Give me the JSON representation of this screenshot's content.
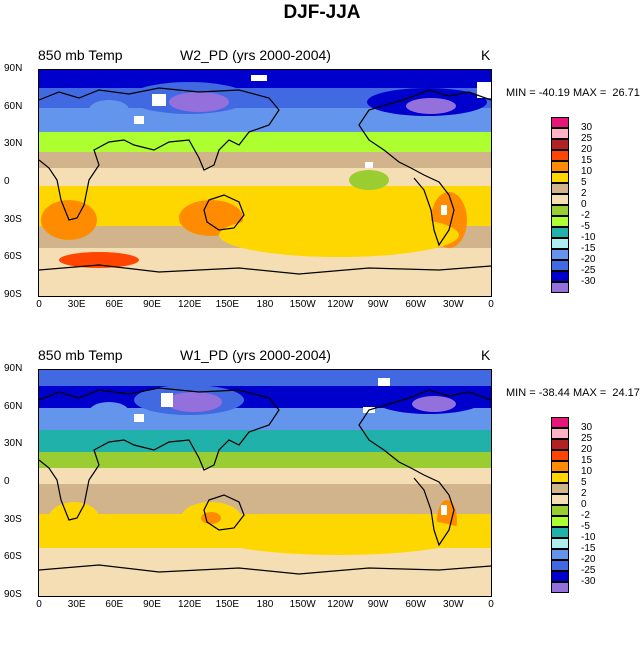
{
  "title": "DJF-JJA",
  "color_scale": {
    "labels": [
      "30",
      "25",
      "20",
      "15",
      "10",
      "5",
      "2",
      "0",
      "-2",
      "-5",
      "-10",
      "-15",
      "-20",
      "-25",
      "-30"
    ],
    "colors": [
      "#e8157a",
      "#ffb3c6",
      "#b22222",
      "#ff4500",
      "#ff8c00",
      "#ffd700",
      "#d2b48c",
      "#f5deb3",
      "#9acd32",
      "#adff2f",
      "#20b2aa",
      "#afeeee",
      "#6495ed",
      "#4169e1",
      "#0000cd",
      "#9370db"
    ]
  },
  "axes": {
    "yticks": [
      "90N",
      "60N",
      "30N",
      "0",
      "30S",
      "60S",
      "90S"
    ],
    "xticks": [
      "0",
      "30E",
      "60E",
      "90E",
      "120E",
      "150E",
      "180",
      "150W",
      "120W",
      "90W",
      "60W",
      "30W",
      "0"
    ]
  },
  "chart_data": [
    {
      "type": "heatmap",
      "variable": "850 mb Temp",
      "case": "W2_PD (yrs 2000-2004)",
      "units": "K",
      "stats": "MIN = -40.19 MAX =  26.71",
      "min": -40.19,
      "max": 26.71,
      "x_range": [
        0,
        360
      ],
      "y_range": [
        -90,
        90
      ]
    },
    {
      "type": "heatmap",
      "variable": "850 mb Temp",
      "case": "W1_PD (yrs 2000-2004)",
      "units": "K",
      "stats": "MIN = -38.44 MAX =  24.17",
      "min": -38.44,
      "max": 24.17,
      "x_range": [
        0,
        360
      ],
      "y_range": [
        -90,
        90
      ]
    }
  ]
}
